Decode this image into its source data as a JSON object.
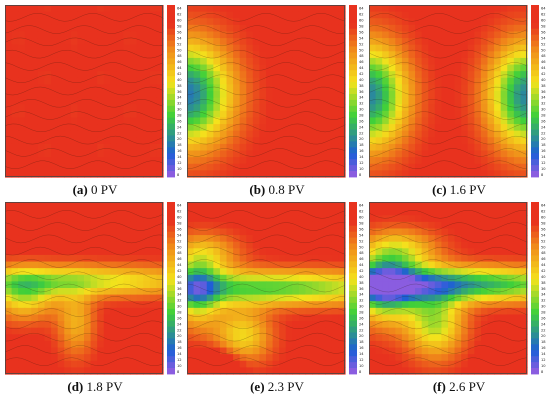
{
  "chart_data": [
    {
      "type": "heatmap",
      "panel_label": "(a)",
      "caption": "0 PV",
      "field": "uniform",
      "colorbar_ticks": [
        "64",
        "62",
        "60",
        "58",
        "56",
        "54",
        "52",
        "50",
        "48",
        "46",
        "44",
        "42",
        "40",
        "38",
        "36",
        "34",
        "32",
        "30",
        "28",
        "26",
        "24",
        "22",
        "20",
        "18",
        "16",
        "14",
        "12",
        "10",
        "8"
      ]
    },
    {
      "type": "heatmap",
      "panel_label": "(b)",
      "caption": "0.8 PV",
      "field": "left-front",
      "colorbar_ticks": [
        "64",
        "62",
        "60",
        "58",
        "56",
        "54",
        "52",
        "50",
        "48",
        "46",
        "44",
        "42",
        "40",
        "38",
        "36",
        "34",
        "32",
        "30",
        "28",
        "26",
        "24",
        "22",
        "20",
        "18",
        "16",
        "14",
        "12",
        "10",
        "8"
      ]
    },
    {
      "type": "heatmap",
      "panel_label": "(c)",
      "caption": "1.6 PV",
      "field": "two-fronts",
      "colorbar_ticks": [
        "64",
        "62",
        "60",
        "58",
        "56",
        "54",
        "52",
        "50",
        "48",
        "46",
        "44",
        "42",
        "40",
        "38",
        "36",
        "34",
        "32",
        "30",
        "28",
        "26",
        "24",
        "22",
        "20",
        "18",
        "16",
        "14",
        "12",
        "10",
        "8"
      ]
    },
    {
      "type": "heatmap",
      "panel_label": "(d)",
      "caption": "1.8 PV",
      "field": "band-weak",
      "colorbar_ticks": [
        "64",
        "62",
        "60",
        "58",
        "56",
        "54",
        "52",
        "50",
        "48",
        "46",
        "44",
        "42",
        "40",
        "38",
        "36",
        "34",
        "32",
        "30",
        "28",
        "26",
        "24",
        "22",
        "20",
        "18",
        "16",
        "14",
        "12",
        "10",
        "8"
      ]
    },
    {
      "type": "heatmap",
      "panel_label": "(e)",
      "caption": "2.3 PV",
      "field": "band-mid",
      "colorbar_ticks": [
        "64",
        "62",
        "60",
        "58",
        "56",
        "54",
        "52",
        "50",
        "48",
        "46",
        "44",
        "42",
        "40",
        "38",
        "36",
        "34",
        "32",
        "30",
        "28",
        "26",
        "24",
        "22",
        "20",
        "18",
        "16",
        "14",
        "12",
        "10",
        "8"
      ]
    },
    {
      "type": "heatmap",
      "panel_label": "(f)",
      "caption": "2.6 PV",
      "field": "band-strong",
      "colorbar_ticks": [
        "64",
        "62",
        "60",
        "58",
        "56",
        "54",
        "52",
        "50",
        "48",
        "46",
        "44",
        "42",
        "40",
        "38",
        "36",
        "34",
        "32",
        "30",
        "28",
        "26",
        "24",
        "22",
        "20",
        "18",
        "16",
        "14",
        "12",
        "10",
        "8"
      ]
    }
  ],
  "colors": {
    "high": "#e8321e",
    "mid_high": "#f08a1a",
    "mid": "#f4e21c",
    "mid_low": "#3fd03a",
    "low": "#1e5ed8",
    "lowest": "#8a5de0"
  }
}
